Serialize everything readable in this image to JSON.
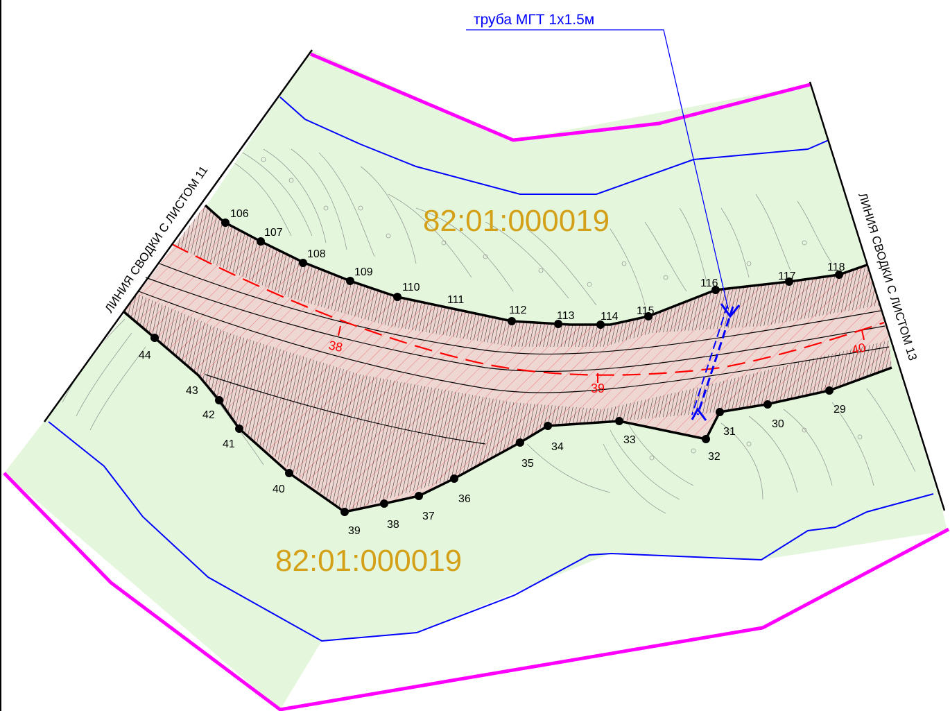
{
  "pipe_label": "труба МГТ 1х1.5м",
  "sheet_left": "ЛИНИЯ СВОДКИ С ЛИСТОМ 11",
  "sheet_right": "ЛИНИЯ СВОДКИ С ЛИСТОМ 13",
  "cadastral_top": "82:01:000019",
  "cadastral_bottom": "82:01:000019",
  "stations": [
    "38",
    "39",
    "40"
  ],
  "points_top": [
    "106",
    "107",
    "108",
    "109",
    "110",
    "111",
    "112",
    "113",
    "114",
    "115",
    "116",
    "117",
    "118"
  ],
  "points_bottom": [
    "29",
    "30",
    "31",
    "32",
    "33",
    "34",
    "35",
    "36",
    "37",
    "38",
    "39",
    "40",
    "41",
    "42",
    "43",
    "44"
  ],
  "colors": {
    "land": "#e4f7dc",
    "allotment": "#eed6d2",
    "boundary_magenta": "#ff00ff",
    "water_blue": "#0000ff",
    "axis_red": "#ff0000",
    "cadastral_text": "#d4a017",
    "contour": "#8a8a8a"
  },
  "icons": [
    "pipe-crossing-icon",
    "survey-point-icon"
  ]
}
